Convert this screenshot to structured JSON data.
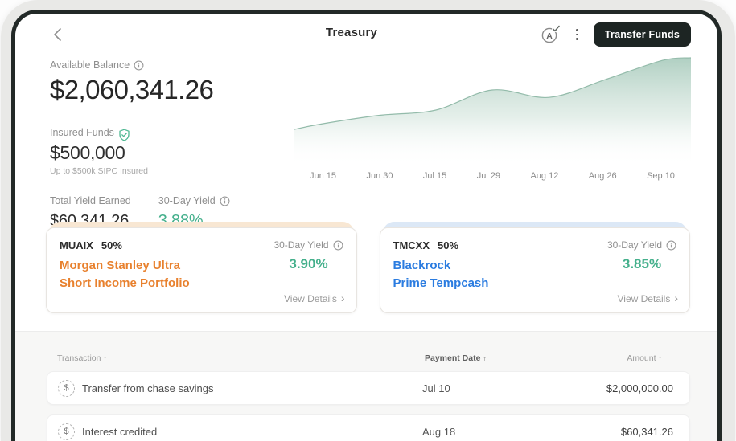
{
  "topbar": {
    "title": "Treasury",
    "transfer_button": "Transfer Funds"
  },
  "stats": {
    "available_balance_label": "Available Balance",
    "available_balance_value": "$2,060,341.26",
    "insured_funds_label": "Insured Funds",
    "insured_funds_value": "$500,000",
    "insured_funds_note": "Up to $500k SIPC Insured",
    "total_yield_label": "Total Yield Earned",
    "total_yield_value": "$60,341.26",
    "thirty_day_yield_label": "30-Day Yield",
    "thirty_day_yield_value": "3.88%"
  },
  "chart_data": {
    "type": "area",
    "title": "",
    "xlabel": "",
    "ylabel": "",
    "categories": [
      "Jun 15",
      "Jun 30",
      "Jul 15",
      "Jul 29",
      "Aug 12",
      "Aug 26",
      "Sep 10"
    ],
    "values_relative_pct": [
      40,
      48,
      53,
      72,
      65,
      82,
      100
    ],
    "ylim": [
      0,
      100
    ],
    "y_axis": "hidden",
    "grid": "off",
    "legend": "none",
    "fill_top_color": "#ACCDBF",
    "line_color": "#93BBAA"
  },
  "funds": [
    {
      "ticker": "MUAIX",
      "allocation": "50%",
      "name_line1": "Morgan Stanley Ultra",
      "name_line2": "Short Income Portfolio",
      "yield_label": "30-Day Yield",
      "yield_value": "3.90%",
      "details_label": "View Details",
      "accent_color": "#E8812E",
      "backing_color": "#F8E7D3"
    },
    {
      "ticker": "TMCXX",
      "allocation": "50%",
      "name_line1": "Blackrock",
      "name_line2": "Prime Tempcash",
      "yield_label": "30-Day Yield",
      "yield_value": "3.85%",
      "details_label": "View Details",
      "accent_color": "#2B7CE0",
      "backing_color": "#DCE8F6"
    }
  ],
  "transactions": {
    "headers": {
      "transaction": "Transaction",
      "payment_date": "Payment Date",
      "amount": "Amount"
    },
    "rows": [
      {
        "description": "Transfer from chase savings",
        "date": "Jul 10",
        "amount": "$2,000,000.00"
      },
      {
        "description": "Interest credited",
        "date": "Aug 18",
        "amount": "$60,341.26"
      }
    ]
  }
}
